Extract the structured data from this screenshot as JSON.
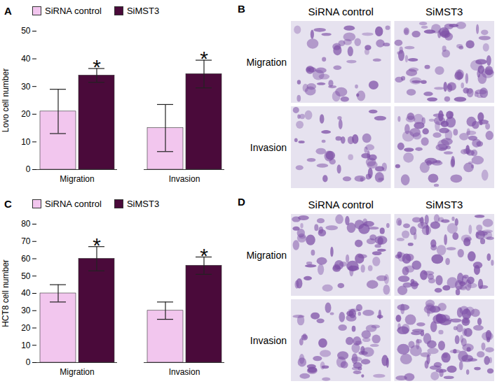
{
  "chart_data": [
    {
      "type": "bar",
      "title": "A",
      "y_label": "Lovo cell number",
      "categories": [
        "Migration",
        "Invasion"
      ],
      "series": [
        {
          "name": "SiRNA control",
          "color": "#f2c6ee",
          "values": [
            21,
            15
          ],
          "errors": [
            8,
            8.5
          ]
        },
        {
          "name": "SiMST3",
          "color": "#4a0a3a",
          "values": [
            34,
            34.5
          ],
          "errors": [
            2.5,
            5
          ]
        }
      ],
      "annotations": [
        {
          "category": "Migration",
          "series": "SiMST3",
          "text": "*"
        },
        {
          "category": "Invasion",
          "series": "SiMST3",
          "text": "*"
        }
      ],
      "ylim": [
        0,
        50
      ],
      "yticks": [
        0,
        10,
        20,
        30,
        40,
        50
      ],
      "legend": "top"
    },
    {
      "type": "bar",
      "title": "C",
      "y_label": "HCT8 cell number",
      "categories": [
        "Migration",
        "Invasion"
      ],
      "series": [
        {
          "name": "SiRNA control",
          "color": "#f2c6ee",
          "values": [
            40,
            30
          ],
          "errors": [
            5,
            5
          ]
        },
        {
          "name": "SiMST3",
          "color": "#4a0a3a",
          "values": [
            60,
            56
          ],
          "errors": [
            7,
            5
          ]
        }
      ],
      "annotations": [
        {
          "category": "Migration",
          "series": "SiMST3",
          "text": "*"
        },
        {
          "category": "Invasion",
          "series": "SiMST3",
          "text": "*"
        }
      ],
      "ylim": [
        0,
        80
      ],
      "yticks": [
        0,
        10,
        20,
        30,
        40,
        50,
        60,
        70,
        80
      ],
      "legend": "top"
    }
  ],
  "image_panels": [
    {
      "letter": "B",
      "columns": [
        "SiRNA control",
        "SiMST3"
      ],
      "rows": [
        "Migration",
        "Invasion"
      ]
    },
    {
      "letter": "D",
      "columns": [
        "SiRNA control",
        "SiMST3"
      ],
      "rows": [
        "Migration",
        "Invasion"
      ]
    }
  ]
}
